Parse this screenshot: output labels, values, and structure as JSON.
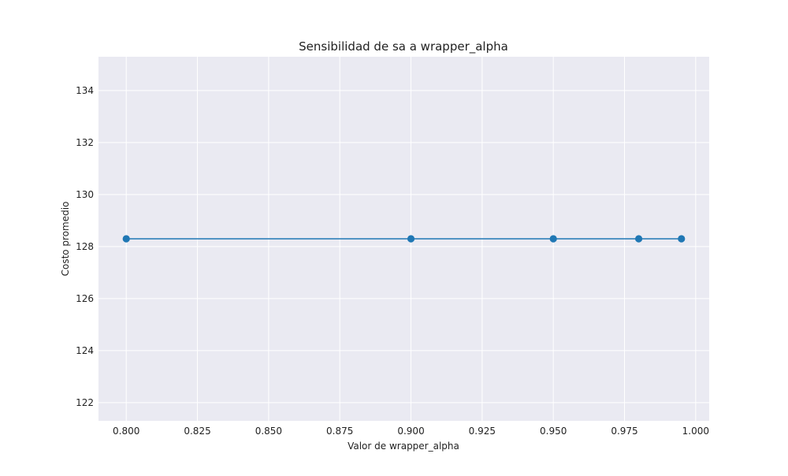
{
  "chart_data": {
    "type": "line",
    "title": "Sensibilidad de sa a wrapper_alpha",
    "xlabel": "Valor de wrapper_alpha",
    "ylabel": "Costo promedio",
    "x": [
      0.8,
      0.9,
      0.95,
      0.98,
      0.995
    ],
    "series": [
      {
        "values": [
          128.3,
          128.3,
          128.3,
          128.3,
          128.3
        ]
      }
    ],
    "xlim": [
      0.79025,
      1.00475
    ],
    "ylim": [
      121.3,
      135.3
    ],
    "xticks": [
      "0.800",
      "0.825",
      "0.850",
      "0.875",
      "0.900",
      "0.925",
      "0.950",
      "0.975",
      "1.000"
    ],
    "xtick_values": [
      0.8,
      0.825,
      0.85,
      0.875,
      0.9,
      0.925,
      0.95,
      0.975,
      1.0
    ],
    "yticks": [
      "122",
      "124",
      "126",
      "128",
      "130",
      "132",
      "134"
    ],
    "ytick_values": [
      122,
      124,
      126,
      128,
      130,
      132,
      134
    ],
    "grid": true,
    "legend": "none",
    "colors": {
      "line": "#1f77b4",
      "plot_background": "#eaeaf2",
      "grid": "#ffffff"
    }
  }
}
